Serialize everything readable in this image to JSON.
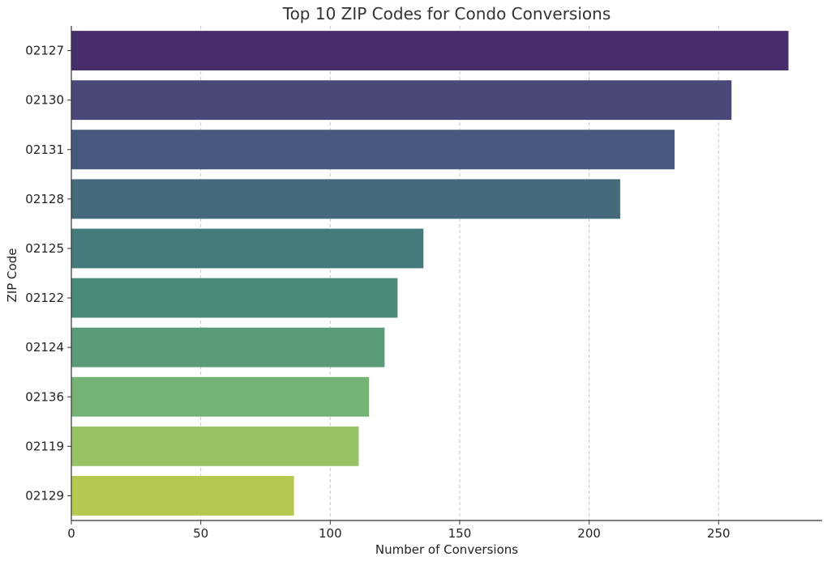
{
  "chart_data": {
    "type": "bar",
    "orientation": "horizontal",
    "title": "Top 10 ZIP Codes for Condo Conversions",
    "xlabel": "Number of Conversions",
    "ylabel": "ZIP Code",
    "categories": [
      "02127",
      "02130",
      "02131",
      "02128",
      "02125",
      "02122",
      "02124",
      "02136",
      "02119",
      "02129"
    ],
    "values": [
      277,
      255,
      233,
      212,
      136,
      126,
      121,
      115,
      111,
      86
    ],
    "colors": [
      "#472d6b",
      "#4a4878",
      "#45597f",
      "#436b7c",
      "#457a7d",
      "#4a8a7b",
      "#599c77",
      "#75b375",
      "#97c364",
      "#b7c851"
    ],
    "xlim": [
      0,
      290
    ],
    "xticks": [
      0,
      50,
      100,
      150,
      200,
      250
    ],
    "grid": "x-dashed"
  }
}
